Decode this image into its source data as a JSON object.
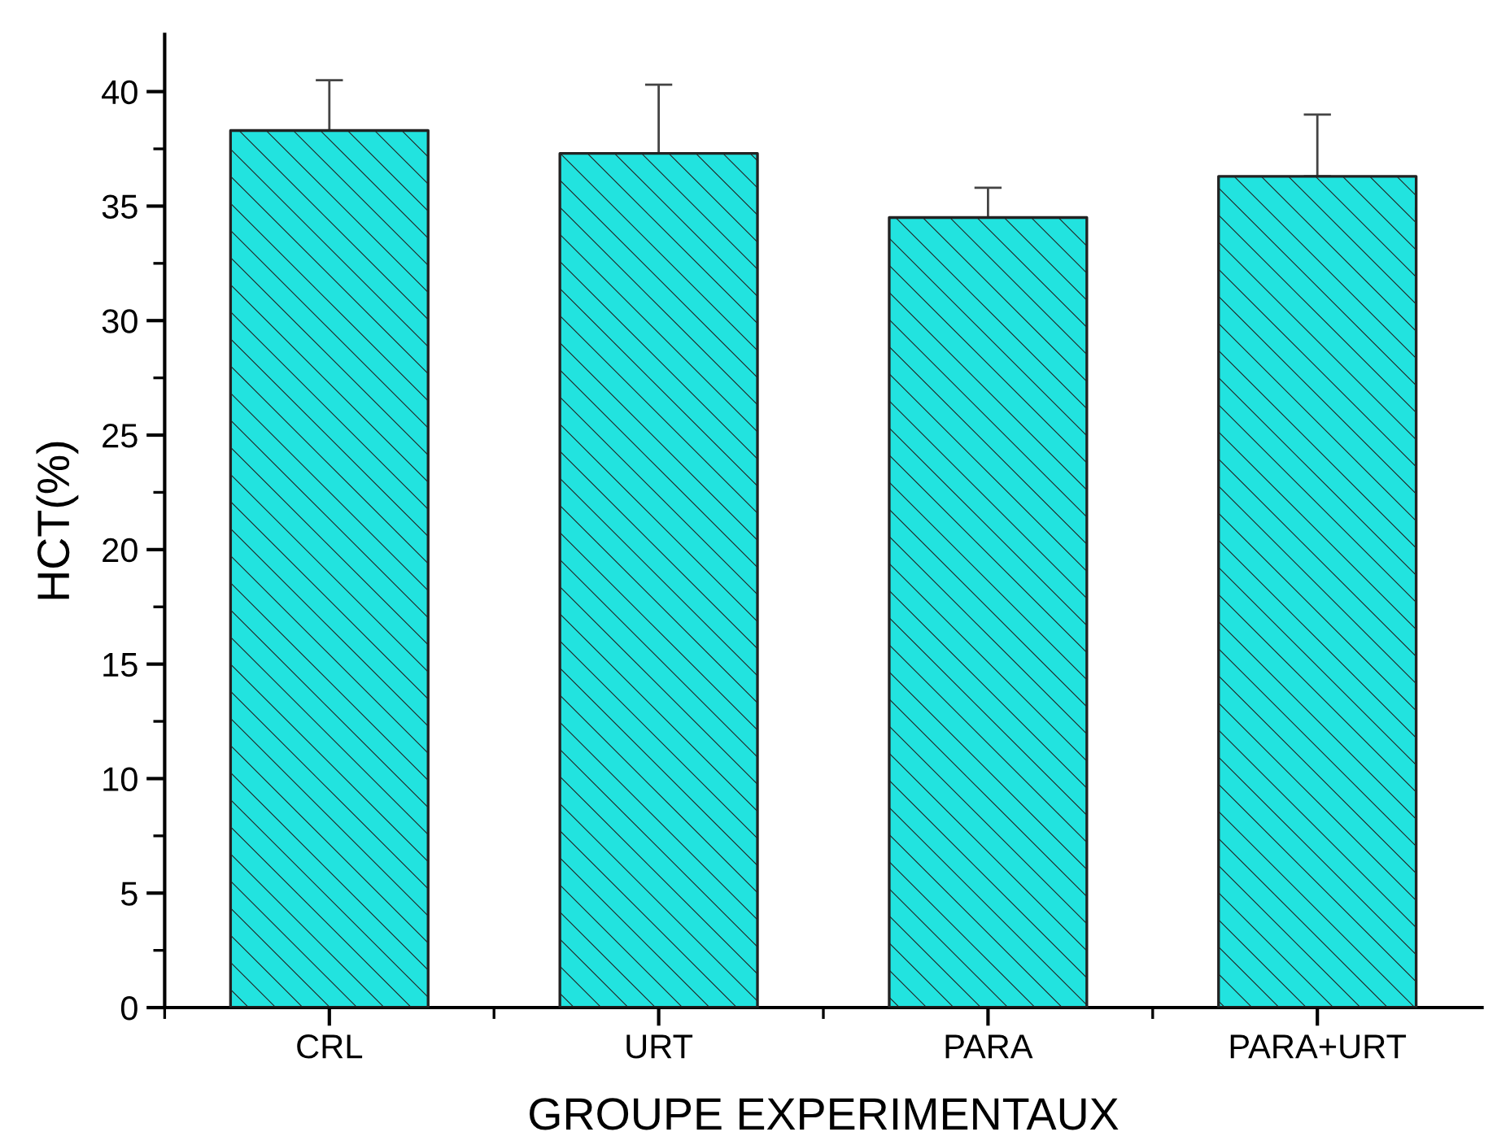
{
  "chart_data": {
    "type": "bar",
    "xlabel": "GROUPE EXPERIMENTAUX",
    "ylabel": "HCT(%)",
    "categories": [
      "CRL",
      "URT",
      "PARA",
      "PARA+URT"
    ],
    "series": [
      {
        "color": "#22e3df",
        "values": [
          38.3,
          37.3,
          34.5,
          36.3
        ],
        "errors": [
          [
            38.3,
            40.5
          ],
          [
            37.3,
            40.3
          ],
          [
            34.5,
            35.8
          ],
          [
            36.3,
            39.0
          ]
        ]
      }
    ],
    "ylim": [
      0,
      42.5
    ],
    "yticks": [
      0,
      5,
      10,
      15,
      20,
      25,
      30,
      35,
      40
    ],
    "grid": false
  }
}
